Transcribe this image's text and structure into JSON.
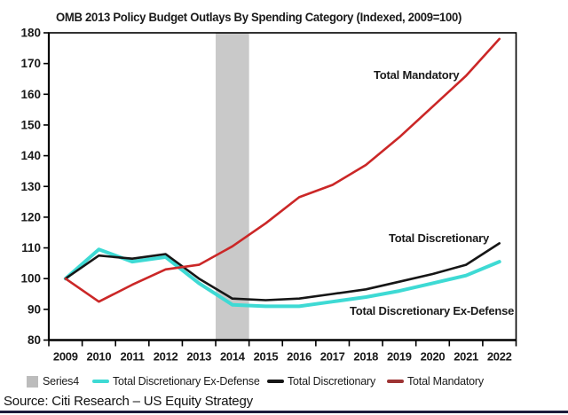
{
  "header": {
    "title": "OMB 2013 Policy Budget Outlays By Spending Category (Indexed, 2009=100)"
  },
  "annotations": {
    "mandatory": "Total Mandatory",
    "discretionary": "Total Discretionary",
    "ex_defense": "Total Discretionary Ex-Defense"
  },
  "legend": {
    "series4_label": "Series4",
    "ex_defense_label": "Total Discretionary Ex-Defense",
    "discretionary_label": "Total Discretionary",
    "mandatory_label": "Total Mandatory"
  },
  "source_line": "Source: Citi Research – US Equity Strategy",
  "colors": {
    "mandatory_line": "#cb2727",
    "discretionary_line": "#161616",
    "ex_defense_line": "#3edad4",
    "band_fill": "#c9c9c9",
    "legend_band_swatch": "#bcbcbc",
    "legend_mandatory_swatch": "#9e3434",
    "axis": "#000000",
    "bottom_rule": "#1c1c3c",
    "text": "#1a1a1a"
  },
  "chart_data": {
    "type": "line",
    "title": "OMB 2013 Policy Budget Outlays By Spending Category (Indexed, 2009=100)",
    "categories": [
      "2009",
      "2010",
      "2011",
      "2012",
      "2013",
      "2014",
      "2015",
      "2016",
      "2017",
      "2018",
      "2019",
      "2020",
      "2021",
      "2022"
    ],
    "yticks": [
      80,
      90,
      100,
      110,
      120,
      130,
      140,
      150,
      160,
      170,
      180
    ],
    "ylim": [
      80,
      180
    ],
    "grid": false,
    "legend_position": "bottom",
    "band_series": {
      "name": "Series4",
      "category": "2014"
    },
    "series": [
      {
        "name": "Total Discretionary Ex-Defense",
        "color_key": "ex_defense_line",
        "width": 4,
        "values": [
          100,
          109.5,
          105.5,
          107,
          98.5,
          91.5,
          91,
          91,
          92.5,
          94,
          96,
          98.5,
          101,
          105.5
        ]
      },
      {
        "name": "Total Discretionary",
        "color_key": "discretionary_line",
        "width": 2.6,
        "values": [
          100,
          107.5,
          106.5,
          108,
          100,
          93.5,
          93,
          93.5,
          95,
          96.5,
          99,
          101.5,
          104.5,
          111.5
        ]
      },
      {
        "name": "Total Mandatory",
        "color_key": "mandatory_line",
        "width": 2.6,
        "values": [
          100,
          92.5,
          98,
          103,
          104.5,
          110.5,
          118,
          126.5,
          130.5,
          137,
          146,
          156,
          166,
          178
        ]
      }
    ]
  }
}
